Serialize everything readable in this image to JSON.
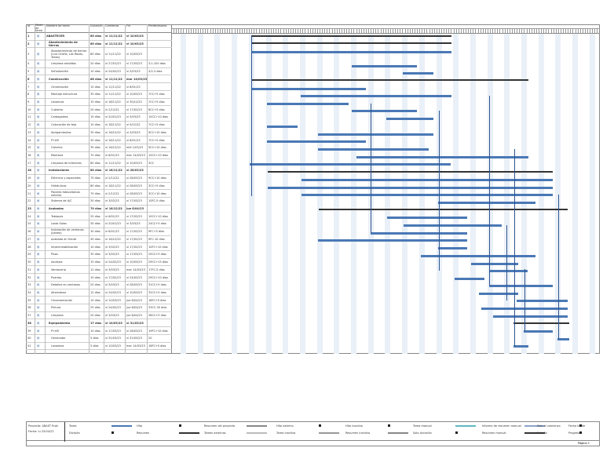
{
  "columns": {
    "id": "Id",
    "mode": "Modo de tarea",
    "name": "Nombre de tarea",
    "duration": "Duración",
    "start": "Comienzo",
    "finish": "Fin",
    "predecessors": "Predecesoras"
  },
  "tasks": [
    {
      "id": "1",
      "name": "ABASTECER",
      "duration": "80 días",
      "start": "vi 11/11/22",
      "finish": "vi 10/03/23",
      "pred": "",
      "summary": true
    },
    {
      "id": "2",
      "name": "Abastecimiento de tierras",
      "duration": "80 días",
      "start": "vi 11/11/22",
      "finish": "vi 10/03/23",
      "pred": "",
      "summary": true
    },
    {
      "id": "3",
      "name": "Abastecimiento de tierras (Luis Ocaña, Las Rozas, Tanos)",
      "duration": "80 días",
      "start": "vi 11/11/22",
      "finish": "vi 10/03/23",
      "pred": ""
    },
    {
      "id": "4",
      "name": "Limpieza arbolitos",
      "duration": "20 días",
      "start": "vi 27/01/23",
      "finish": "vi 17/03/23",
      "pred": "3;1-100 días"
    },
    {
      "id": "5",
      "name": "Señalización",
      "duration": "10 días",
      "start": "vi 24/02/23",
      "finish": "vi 3/03/23",
      "pred": "4;5-3 días"
    },
    {
      "id": "6",
      "name": "Construcción",
      "duration": "88 días",
      "start": "vi 11/11/22",
      "finish": "mar 14/03/23",
      "pred": "",
      "summary": true
    },
    {
      "id": "7",
      "name": "Cimentación",
      "duration": "15 días",
      "start": "vi 11/11/22",
      "finish": "vi 6/01/23",
      "pred": ""
    },
    {
      "id": "8",
      "name": "Montaje estructura",
      "duration": "35 días",
      "start": "vi 11/11/22",
      "finish": "vi 10/03/23",
      "pred": "7CC+5 días"
    },
    {
      "id": "9",
      "name": "Levadura",
      "duration": "15 días",
      "start": "vi 18/11/22",
      "finish": "vi 30/12/22",
      "pred": "7CC+5 días"
    },
    {
      "id": "10",
      "name": "Cubierta",
      "duration": "20 días",
      "start": "vi 2/12/22",
      "finish": "vi 17/02/23",
      "pred": "8CC+5 días"
    },
    {
      "id": "11",
      "name": "Carbagaless",
      "duration": "15 días",
      "start": "vi 20/01/23",
      "finish": "vi 3/03/23",
      "pred": "10CC+10 días"
    },
    {
      "id": "12",
      "name": "Colocación de teja",
      "duration": "10 días",
      "start": "vi 18/11/22",
      "finish": "vi 9/12/22",
      "pred": "7CC+5 días"
    },
    {
      "id": "13",
      "name": "Abrigamientos",
      "duration": "35 días",
      "start": "vi 16/12/22",
      "finish": "vi 3/03/23",
      "pred": "9CC+10 días"
    },
    {
      "id": "14",
      "name": "P+AR",
      "duration": "30 días",
      "start": "vi 18/11/22",
      "finish": "vi 6/01/23",
      "pred": "7CC+5 días"
    },
    {
      "id": "15",
      "name": "Cisterna",
      "duration": "35 días",
      "start": "vi 16/12/22",
      "finish": "mié 1/03/23",
      "pred": "9CC+10 días"
    },
    {
      "id": "16",
      "name": "Montana",
      "duration": "70 días",
      "start": "vi 6/01/23",
      "finish": "mar 14/03/23",
      "pred": "10CC+10 días"
    },
    {
      "id": "17",
      "name": "Limpieza de interiores",
      "duration": "80 días",
      "start": "vi 11/11/22",
      "finish": "vi 10/03/23",
      "pred": "3CC"
    },
    {
      "id": "18",
      "name": "Instalaciones",
      "duration": "80 días",
      "start": "vi 18/11/22",
      "finish": "vi 28/03/23",
      "pred": "",
      "summary": true
    },
    {
      "id": "19",
      "name": "Eléctrica y especiales",
      "duration": "75 días",
      "start": "vi 2/12/22",
      "finish": "vi 28/03/23",
      "pred": "9CC+10 días"
    },
    {
      "id": "20",
      "name": "Hidráulicas",
      "duration": "80 días",
      "start": "vi 18/11/22",
      "finish": "vi 28/03/23",
      "pred": "3CC+5 días"
    },
    {
      "id": "21",
      "name": "Paneles fotovoltaicos exterior",
      "duration": "75 días",
      "start": "vi 2/12/22",
      "finish": "vi 28/03/23",
      "pred": "3CC+10 días"
    },
    {
      "id": "22",
      "name": "Sistema de A/C",
      "duration": "30 días",
      "start": "vi 3/02/23",
      "finish": "vi 17/03/23",
      "pred": "10FC-5 días"
    },
    {
      "id": "23",
      "name": "Acabados",
      "duration": "70 días",
      "start": "vi 16/12/22",
      "finish": "jue 6/04/23",
      "pred": "",
      "summary": true
    },
    {
      "id": "24",
      "name": "Tabiques",
      "duration": "25 días",
      "start": "vi 6/01/23",
      "finish": "vi 17/02/23",
      "pred": "10CC+10 días"
    },
    {
      "id": "25",
      "name": "Losta Solas",
      "duration": "30 días",
      "start": "vi 20/01/23",
      "finish": "vi 3/03/23",
      "pred": "24CC+5 días"
    },
    {
      "id": "26",
      "name": "Instalación de ventanas (paneo)",
      "duration": "30 días",
      "start": "vi 6/01/23",
      "finish": "vi 17/02/23",
      "pred": "9FC+5 días"
    },
    {
      "id": "27",
      "name": "Acabado en frente",
      "duration": "45 días",
      "start": "vi 16/12/22",
      "finish": "vi 17/02/23",
      "pred": "9FC-10 días"
    },
    {
      "id": "28",
      "name": "Impermeabilización",
      "duration": "10 días",
      "start": "vi 3/02/23",
      "finish": "vi 17/02/23",
      "pred": "10FC+10 días"
    },
    {
      "id": "29",
      "name": "Pisos",
      "duration": "35 días",
      "start": "vi 3/02/23",
      "finish": "vi 17/03/23",
      "pred": "25CC+5 días"
    },
    {
      "id": "30",
      "name": "Azulejos",
      "duration": "15 días",
      "start": "vi 24/02/23",
      "finish": "vi 10/03/23",
      "pred": "29CC+15 días"
    },
    {
      "id": "31",
      "name": "Ventanería",
      "duration": "12 días",
      "start": "vi 3/03/23",
      "finish": "mar 14/03/23",
      "pred": "17FC-5 días"
    },
    {
      "id": "32",
      "name": "Puertas",
      "duration": "10 días",
      "start": "vi 17/02/23",
      "finish": "vi 24/02/23",
      "pred": "29CC+10 días"
    },
    {
      "id": "33",
      "name": "Detalles en ventanas",
      "duration": "20 días",
      "start": "vi 3/03/23",
      "finish": "vi 28/03/23",
      "pred": "31CC+5 días"
    },
    {
      "id": "34",
      "name": "Aliviaderos",
      "duration": "12 días",
      "start": "vi 24/02/23",
      "finish": "vi 10/03/23",
      "pred": "32CC+5 días"
    },
    {
      "id": "35",
      "name": "Ornamentación",
      "duration": "15 días",
      "start": "vi 10/03/23",
      "finish": "jue 6/04/23",
      "pred": "16FC+5 días"
    },
    {
      "id": "36",
      "name": "Pintura",
      "duration": "25 días",
      "start": "vi 24/02/23",
      "finish": "jue 6/04/23",
      "pred": "33CC-30 días"
    },
    {
      "id": "37",
      "name": "Limpieza",
      "duration": "20 días",
      "start": "vi 3/03/23",
      "finish": "jue 6/04/23",
      "pred": "36CC+5 días"
    },
    {
      "id": "38",
      "name": "Equipamiento",
      "duration": "17 días",
      "start": "vi 10/03/23",
      "finish": "vi 31/03/23",
      "pred": "",
      "summary": true
    },
    {
      "id": "39",
      "name": "P+AR",
      "duration": "10 días",
      "start": "vi 17/03/23",
      "finish": "vi 28/03/23",
      "pred": "19FC+10 días"
    },
    {
      "id": "40",
      "name": "Generador",
      "duration": "5 días",
      "start": "vi 31/03/23",
      "finish": "vi 31/03/23",
      "pred": "20"
    },
    {
      "id": "41",
      "name": "Lavadora",
      "duration": "5 días",
      "start": "vi 10/03/23",
      "finish": "mar 14/03/23",
      "pred": "16FC+5 días"
    }
  ],
  "footer": {
    "project": "Proyecto: ABAST Rubí",
    "date": "Fecha: lu 25/04/22",
    "legend": [
      {
        "label": "Tarea",
        "kind": "task"
      },
      {
        "label": "División",
        "kind": "split"
      },
      {
        "label": "Hito",
        "kind": "milestone"
      },
      {
        "label": "Resumen",
        "kind": "summary"
      },
      {
        "label": "Resumen del proyecto",
        "kind": "project-summary"
      },
      {
        "label": "Tareas externas",
        "kind": "external"
      },
      {
        "label": "Hito externo",
        "kind": "external-milestone"
      },
      {
        "label": "Tarea inactiva",
        "kind": "inactive"
      },
      {
        "label": "Hito inactivo",
        "kind": "inactive-milestone"
      },
      {
        "label": "Resumen inactivo",
        "kind": "inactive-summary"
      },
      {
        "label": "Tarea manual",
        "kind": "manual"
      },
      {
        "label": "Solo duración",
        "kind": "duration-only"
      },
      {
        "label": "Informe de resumen manual",
        "kind": "manual-summary-rollup"
      },
      {
        "label": "Resumen manual",
        "kind": "manual-summary"
      },
      {
        "label": "Solo el comienzo",
        "kind": "start-only"
      },
      {
        "label": "Solo fin",
        "kind": "finish-only"
      },
      {
        "label": "Fecha límite",
        "kind": "deadline"
      },
      {
        "label": "Progreso",
        "kind": "progress"
      }
    ],
    "page": "Página 1"
  },
  "colors": {
    "task": "#4a78b5",
    "summary": "#333333",
    "stripe": "#eaf0f7"
  }
}
